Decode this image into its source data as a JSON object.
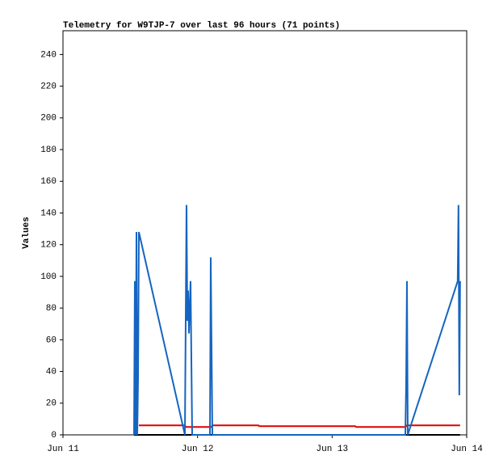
{
  "chart_data": {
    "type": "line",
    "title": "Telemetry for W9TJP-7 over last 96 hours (71 points)",
    "y_label": "Values",
    "xlim": [
      0,
      3
    ],
    "xticks": [
      {
        "value": 0,
        "label": "Jun 11"
      },
      {
        "value": 1,
        "label": "Jun 12"
      },
      {
        "value": 2,
        "label": "Jun 13"
      },
      {
        "value": 3,
        "label": "Jun 14"
      }
    ],
    "ylim": [
      0,
      255
    ],
    "yticks": [
      0,
      20,
      40,
      60,
      80,
      100,
      120,
      140,
      160,
      180,
      200,
      220,
      240
    ],
    "series": [
      {
        "color": "#000000",
        "x": [
          0.528,
          2.951
        ],
        "values": [
          0,
          0
        ]
      },
      {
        "color": "#e00000",
        "x": [
          0.564,
          0.906,
          0.912,
          1.104,
          1.11,
          1.452,
          1.458,
          2.172,
          2.178,
          2.544,
          2.556,
          2.951
        ],
        "values": [
          6,
          6,
          5,
          5,
          6,
          6,
          5.5,
          5.5,
          5,
          5,
          6,
          6
        ]
      },
      {
        "color": "#1565c0",
        "x": [
          0.528,
          0.534,
          0.54,
          0.546,
          0.552,
          0.558,
          0.564,
          0.906,
          0.912,
          0.918,
          0.924,
          0.93,
          0.936,
          0.942,
          0.948,
          0.954,
          0.96,
          1.092,
          1.098,
          1.104,
          1.11,
          2.544,
          2.55,
          2.556,
          2.562,
          2.933,
          2.939,
          2.945,
          2.951
        ],
        "values": [
          0,
          97,
          0,
          128,
          0,
          36,
          128,
          0,
          73,
          145,
          72,
          91,
          64,
          80,
          97,
          48,
          0,
          0,
          112,
          56,
          0,
          0,
          32,
          97,
          0,
          97,
          145,
          25,
          97
        ]
      }
    ]
  }
}
